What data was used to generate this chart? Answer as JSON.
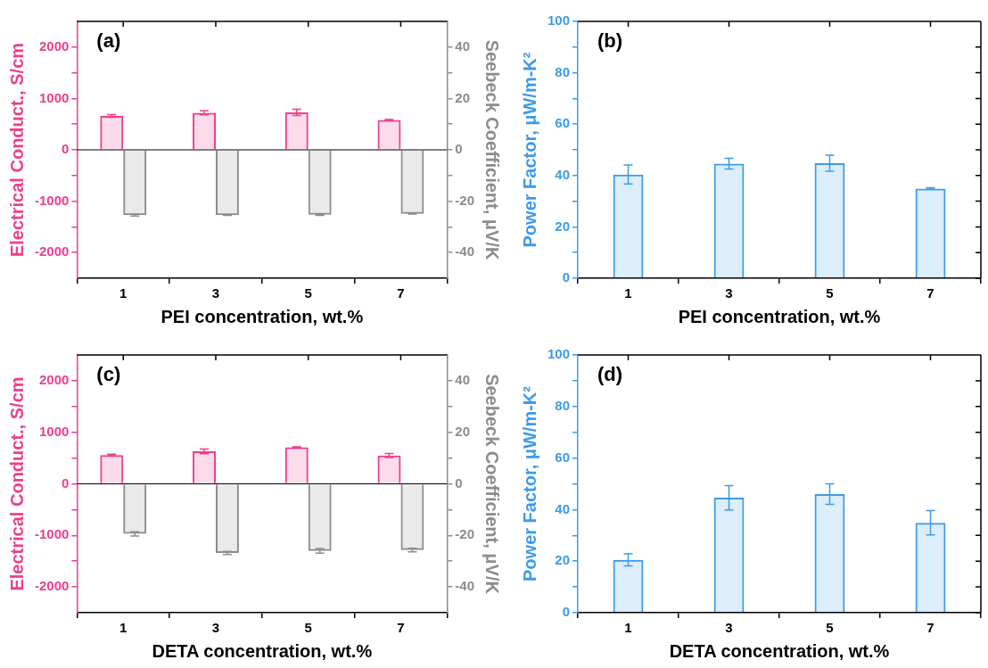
{
  "chart_data": [
    {
      "type": "bar",
      "categories": [
        "1",
        "3",
        "5",
        "7"
      ],
      "xlabel": "PEI concentration, wt.%",
      "ylabel": "Electrical Conduct., S/cm",
      "y2label": "Seebeck Coefficient, μV/K",
      "annotations": [
        "(a)"
      ],
      "ylim": [
        -2500,
        2500
      ],
      "yticks": [
        -2000,
        {
          "value": -1500,
          "label": null
        },
        -1000,
        {
          "value": -500,
          "label": null
        },
        0,
        {
          "value": 500,
          "label": null
        },
        1000,
        {
          "value": 1500,
          "label": null
        },
        2000
      ],
      "y2lim": [
        -50,
        50
      ],
      "y2ticks": [
        -40,
        {
          "value": -30,
          "label": null
        },
        -20,
        {
          "value": -10,
          "label": null
        },
        0,
        {
          "value": 10,
          "label": null
        },
        20,
        {
          "value": 30,
          "label": null
        },
        40
      ],
      "ref_lines": [
        {
          "axis": "y",
          "value": 0,
          "color": "#000000"
        }
      ],
      "series": [
        {
          "color": "#ec3f8f",
          "values": [
            660,
            720,
            730,
            580
          ],
          "errors": [
            25,
            40,
            60,
            10
          ]
        },
        {
          "color": "#8c8c8c",
          "axis": "y2",
          "values": [
            -25.4,
            -25.4,
            -25.3,
            -24.9
          ],
          "errors": [
            0.4,
            0.1,
            0.2,
            0.1
          ]
        }
      ]
    },
    {
      "type": "bar",
      "categories": [
        "1",
        "3",
        "5",
        "7"
      ],
      "xlabel": "PEI concentration, wt.%",
      "ylabel": "Power Factor, μW/m-K²",
      "annotations": [
        "(b)"
      ],
      "ylim": [
        0,
        100
      ],
      "yticks": [
        0,
        {
          "value": 10,
          "label": null
        },
        20,
        {
          "value": 30,
          "label": null
        },
        40,
        {
          "value": 50,
          "label": null
        },
        60,
        {
          "value": 70,
          "label": null
        },
        80,
        {
          "value": 90,
          "label": null
        },
        100
      ],
      "series": [
        {
          "color": "#3d9be9",
          "values": [
            40.4,
            44.6,
            44.8,
            34.9
          ],
          "errors": [
            3.7,
            2.1,
            3.1,
            0.3
          ]
        }
      ]
    },
    {
      "type": "bar",
      "categories": [
        "1",
        "3",
        "5",
        "7"
      ],
      "xlabel": "DETA concentration, wt.%",
      "ylabel": "Electrical Conduct., S/cm",
      "y2label": "Seebeck Coefficient, μV/K",
      "annotations": [
        "(c)"
      ],
      "ylim": [
        -2500,
        2500
      ],
      "yticks": [
        -2000,
        {
          "value": -1500,
          "label": null
        },
        -1000,
        {
          "value": -500,
          "label": null
        },
        0,
        {
          "value": 500,
          "label": null
        },
        1000,
        {
          "value": 1500,
          "label": null
        },
        2000
      ],
      "y2lim": [
        -50,
        50
      ],
      "y2ticks": [
        -40,
        {
          "value": -30,
          "label": null
        },
        -20,
        {
          "value": -10,
          "label": null
        },
        0,
        {
          "value": 10,
          "label": null
        },
        20,
        {
          "value": 30,
          "label": null
        },
        40
      ],
      "ref_lines": [
        {
          "axis": "y",
          "value": 0,
          "color": "#000000"
        }
      ],
      "series": [
        {
          "color": "#ec3f8f",
          "values": [
            560,
            630,
            710,
            550
          ],
          "errors": [
            15,
            45,
            10,
            40
          ]
        },
        {
          "color": "#8c8c8c",
          "axis": "y2",
          "values": [
            -19.4,
            -26.8,
            -26,
            -25.7
          ],
          "errors": [
            0.8,
            0.6,
            0.9,
            0.7
          ]
        }
      ]
    },
    {
      "type": "bar",
      "categories": [
        "1",
        "3",
        "5",
        "7"
      ],
      "xlabel": "DETA concentration, wt.%",
      "ylabel": "Power Factor, μW/m-K²",
      "annotations": [
        "(d)"
      ],
      "ylim": [
        0,
        100
      ],
      "yticks": [
        0,
        {
          "value": 10,
          "label": null
        },
        20,
        {
          "value": 30,
          "label": null
        },
        40,
        {
          "value": 50,
          "label": null
        },
        60,
        {
          "value": 70,
          "label": null
        },
        80,
        {
          "value": 90,
          "label": null
        },
        100
      ],
      "series": [
        {
          "color": "#3d9be9",
          "values": [
            20.5,
            44.6,
            46,
            34.9
          ],
          "errors": [
            2.3,
            4.7,
            4,
            4.7
          ]
        }
      ]
    }
  ]
}
